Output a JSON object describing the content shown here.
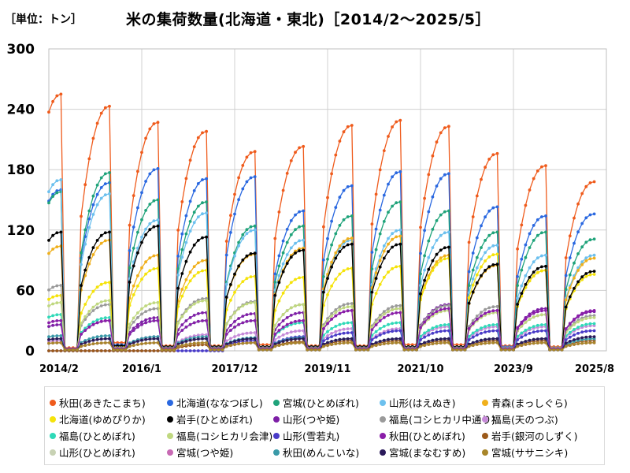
{
  "unit_label": "［単位：トン］",
  "title": "米の集荷数量(北海道・東北)［2014/2～2025/5］",
  "chart_data": {
    "type": "line",
    "title": "米の集荷数量(北海道・東北)［2014/2～2025/5］",
    "unit": "［単位：トン］",
    "ylim": [
      0,
      300
    ],
    "yticks": [
      0,
      60,
      120,
      180,
      240,
      300
    ],
    "xlim": [
      "2014/2",
      "2025/8"
    ],
    "xticks": [
      "2014/2",
      "2016/1",
      "2017/12",
      "2019/11",
      "2021/10",
      "2023/9",
      "2025/8"
    ],
    "grid": true,
    "legend_position": "bottom",
    "series": [
      {
        "name": "秋田(あきたこまち)",
        "color": "#ef5b1c",
        "peaks": [
          255,
          243,
          227,
          218,
          198,
          203,
          224,
          229,
          223,
          196,
          184,
          168
        ],
        "base": [
          3,
          8,
          5,
          5,
          6,
          5,
          5,
          6,
          6,
          5,
          4
        ]
      },
      {
        "name": "北海道(ななつぼし)",
        "color": "#2a68e0",
        "peaks": [
          160,
          167,
          181,
          171,
          173,
          139,
          164,
          178,
          176,
          143,
          134,
          136
        ],
        "base": [
          2,
          6,
          4,
          4,
          4,
          4,
          4,
          4,
          4,
          4,
          3
        ]
      },
      {
        "name": "宮城(ひとめぼれ)",
        "color": "#1fa37a",
        "peaks": [
          158,
          177,
          150,
          148,
          124,
          124,
          134,
          148,
          139,
          118,
          118,
          111
        ],
        "base": [
          2,
          5,
          4,
          4,
          4,
          4,
          4,
          4,
          4,
          3,
          3
        ]
      },
      {
        "name": "山形(はえぬき)",
        "color": "#6cc0ee",
        "peaks": [
          170,
          156,
          130,
          137,
          120,
          110,
          110,
          120,
          118,
          105,
          95,
          95
        ],
        "base": [
          2,
          5,
          4,
          4,
          4,
          4,
          4,
          4,
          4,
          3,
          3
        ]
      },
      {
        "name": "青森(まっしぐら)",
        "color": "#f0b01c",
        "peaks": [
          104,
          110,
          95,
          90,
          96,
          102,
          112,
          114,
          95,
          85,
          80,
          92
        ],
        "base": [
          2,
          4,
          3,
          3,
          3,
          3,
          3,
          3,
          3,
          3,
          3
        ]
      },
      {
        "name": "北海道(ゆめぴりか)",
        "color": "#f5e30a",
        "peaks": [
          55,
          68,
          82,
          80,
          74,
          73,
          82,
          84,
          92,
          96,
          80,
          76
        ],
        "base": [
          2,
          3,
          3,
          3,
          3,
          3,
          3,
          3,
          3,
          3,
          3
        ]
      },
      {
        "name": "岩手(ひとめぼれ)",
        "color": "#000000",
        "peaks": [
          118,
          118,
          124,
          113,
          97,
          100,
          106,
          106,
          103,
          86,
          84,
          79
        ],
        "base": [
          2,
          5,
          4,
          4,
          4,
          4,
          4,
          4,
          4,
          3,
          3
        ]
      },
      {
        "name": "山形(つや姫)",
        "color": "#7d1fa6",
        "peaks": [
          26,
          30,
          33,
          38,
          37,
          38,
          40,
          42,
          46,
          40,
          42,
          39
        ],
        "base": [
          2,
          2,
          2,
          2,
          2,
          2,
          2,
          2,
          2,
          2,
          2
        ]
      },
      {
        "name": "福島(コシヒカリ中通り)",
        "color": "#9a9a9a",
        "peaks": [
          65,
          46,
          42,
          52,
          49,
          46,
          47,
          45,
          45,
          44,
          36,
          35
        ],
        "base": [
          2,
          3,
          3,
          3,
          3,
          3,
          3,
          3,
          3,
          3,
          3
        ]
      },
      {
        "name": "福島(天のつぶ)",
        "color": "#c68ad8",
        "peaks": [
          10,
          12,
          14,
          16,
          18,
          20,
          22,
          22,
          24,
          24,
          24,
          25
        ],
        "base": [
          1,
          1,
          1,
          1,
          1,
          1,
          1,
          1,
          1,
          1,
          1
        ]
      },
      {
        "name": "福島(ひとめぼれ)",
        "color": "#2fd9b8",
        "peaks": [
          36,
          33,
          30,
          30,
          30,
          28,
          28,
          28,
          26,
          26,
          26,
          27
        ],
        "base": [
          2,
          2,
          2,
          2,
          2,
          2,
          2,
          2,
          2,
          2,
          2
        ]
      },
      {
        "name": "福島(コシヒカリ会津)",
        "color": "#c0d880",
        "peaks": [
          48,
          50,
          48,
          50,
          48,
          46,
          44,
          42,
          40,
          38,
          36,
          33
        ],
        "base": [
          2,
          2,
          2,
          2,
          2,
          2,
          2,
          2,
          2,
          2,
          2
        ]
      },
      {
        "name": "山形(雪若丸)",
        "color": "#4a3cc8",
        "peaks": [
          0,
          0,
          0,
          0,
          10,
          14,
          18,
          20,
          20,
          20,
          20,
          20
        ],
        "base": [
          0,
          0,
          0,
          0,
          1,
          1,
          1,
          1,
          1,
          1,
          1
        ]
      },
      {
        "name": "秋田(ひとめぼれ)",
        "color": "#8a1ea8",
        "peaks": [
          30,
          30,
          30,
          30,
          30,
          30,
          40,
          38,
          42,
          40,
          40,
          40
        ],
        "base": [
          2,
          2,
          2,
          2,
          2,
          2,
          2,
          2,
          2,
          2,
          2
        ]
      },
      {
        "name": "岩手(銀河のしずく)",
        "color": "#9c5a1a",
        "peaks": [
          0,
          0,
          0,
          6,
          8,
          9,
          10,
          10,
          10,
          10,
          10,
          10
        ],
        "base": [
          0,
          0,
          0,
          1,
          1,
          1,
          1,
          1,
          1,
          1,
          1
        ]
      },
      {
        "name": "山形(ひとめぼれ)",
        "color": "#c8d2b4",
        "peaks": [
          12,
          12,
          12,
          12,
          12,
          12,
          12,
          12,
          12,
          12,
          12,
          12
        ],
        "base": [
          1,
          1,
          1,
          1,
          1,
          1,
          1,
          1,
          1,
          1,
          1
        ]
      },
      {
        "name": "宮城(つや姫)",
        "color": "#c86ab4",
        "peaks": [
          8,
          8,
          8,
          8,
          8,
          8,
          8,
          8,
          8,
          8,
          8,
          8
        ],
        "base": [
          1,
          1,
          1,
          1,
          1,
          1,
          1,
          1,
          1,
          1,
          1
        ]
      },
      {
        "name": "秋田(めんこいな)",
        "color": "#3a9aa8",
        "peaks": [
          15,
          15,
          14,
          14,
          13,
          13,
          12,
          12,
          12,
          12,
          12,
          12
        ],
        "base": [
          1,
          1,
          1,
          1,
          1,
          1,
          1,
          1,
          1,
          1,
          1
        ]
      },
      {
        "name": "宮城(まなむすめ)",
        "color": "#2a1a5a",
        "peaks": [
          12,
          12,
          12,
          12,
          12,
          12,
          12,
          12,
          12,
          12,
          12,
          14
        ],
        "base": [
          1,
          1,
          1,
          1,
          1,
          1,
          1,
          1,
          1,
          1,
          1
        ]
      },
      {
        "name": "宮城(ササニシキ)",
        "color": "#a8862a",
        "peaks": [
          8,
          8,
          8,
          8,
          8,
          8,
          8,
          8,
          8,
          8,
          8,
          8
        ],
        "base": [
          1,
          1,
          1,
          1,
          1,
          1,
          1,
          1,
          1,
          1,
          1
        ]
      }
    ]
  }
}
